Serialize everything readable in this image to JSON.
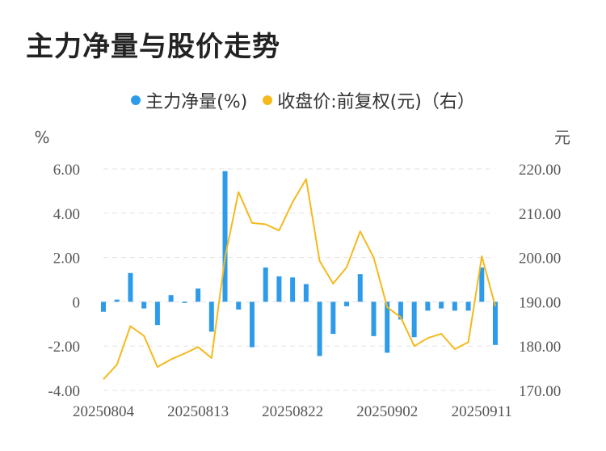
{
  "page_title": "主力净量与股价走势",
  "chart_data": {
    "type": "bar+line",
    "title": "主力净量与股价走势",
    "legend": [
      {
        "name": "主力净量(%)",
        "color": "#2E9BEA"
      },
      {
        "name": "收盘价:前复权(元)（右）",
        "color": "#F5B91C"
      }
    ],
    "left_axis": {
      "unit": "%",
      "min": -4.0,
      "max": 6.0,
      "ticks": [
        "6.00",
        "4.00",
        "2.00",
        "0",
        "-2.00",
        "-4.00"
      ]
    },
    "right_axis": {
      "unit": "元",
      "min": 170.0,
      "max": 220.0,
      "ticks": [
        "220.00",
        "210.00",
        "200.00",
        "190.00",
        "180.00",
        "170.00"
      ]
    },
    "x_tick_labels": [
      {
        "label": "20250804",
        "index": 0
      },
      {
        "label": "20250813",
        "index": 7
      },
      {
        "label": "20250822",
        "index": 14
      },
      {
        "label": "20250902",
        "index": 21
      },
      {
        "label": "20250911",
        "index": 28
      }
    ],
    "series": [
      {
        "name": "主力净量(%)",
        "type": "bar",
        "color": "#2E9BEA",
        "values": [
          -0.45,
          0.1,
          1.3,
          -0.3,
          -1.05,
          0.3,
          -0.05,
          0.6,
          -1.35,
          5.9,
          -0.35,
          -2.05,
          1.55,
          1.15,
          1.1,
          0.8,
          -2.45,
          -1.45,
          -0.2,
          1.25,
          -1.55,
          -2.3,
          -0.8,
          -1.6,
          -0.4,
          -0.3,
          -0.4,
          -0.4,
          1.55,
          -1.95
        ]
      },
      {
        "name": "收盘价:前复权(元)（右）",
        "type": "line",
        "color": "#F5B91C",
        "values": [
          172.5,
          175.8,
          184.5,
          182.3,
          175.3,
          177.0,
          178.3,
          179.8,
          177.3,
          200.0,
          214.8,
          207.8,
          207.5,
          206.1,
          212.5,
          217.7,
          199.2,
          194.1,
          197.8,
          205.9,
          200.0,
          188.8,
          186.5,
          180.0,
          181.8,
          182.8,
          179.3,
          180.9,
          200.3,
          189.0
        ]
      }
    ]
  }
}
